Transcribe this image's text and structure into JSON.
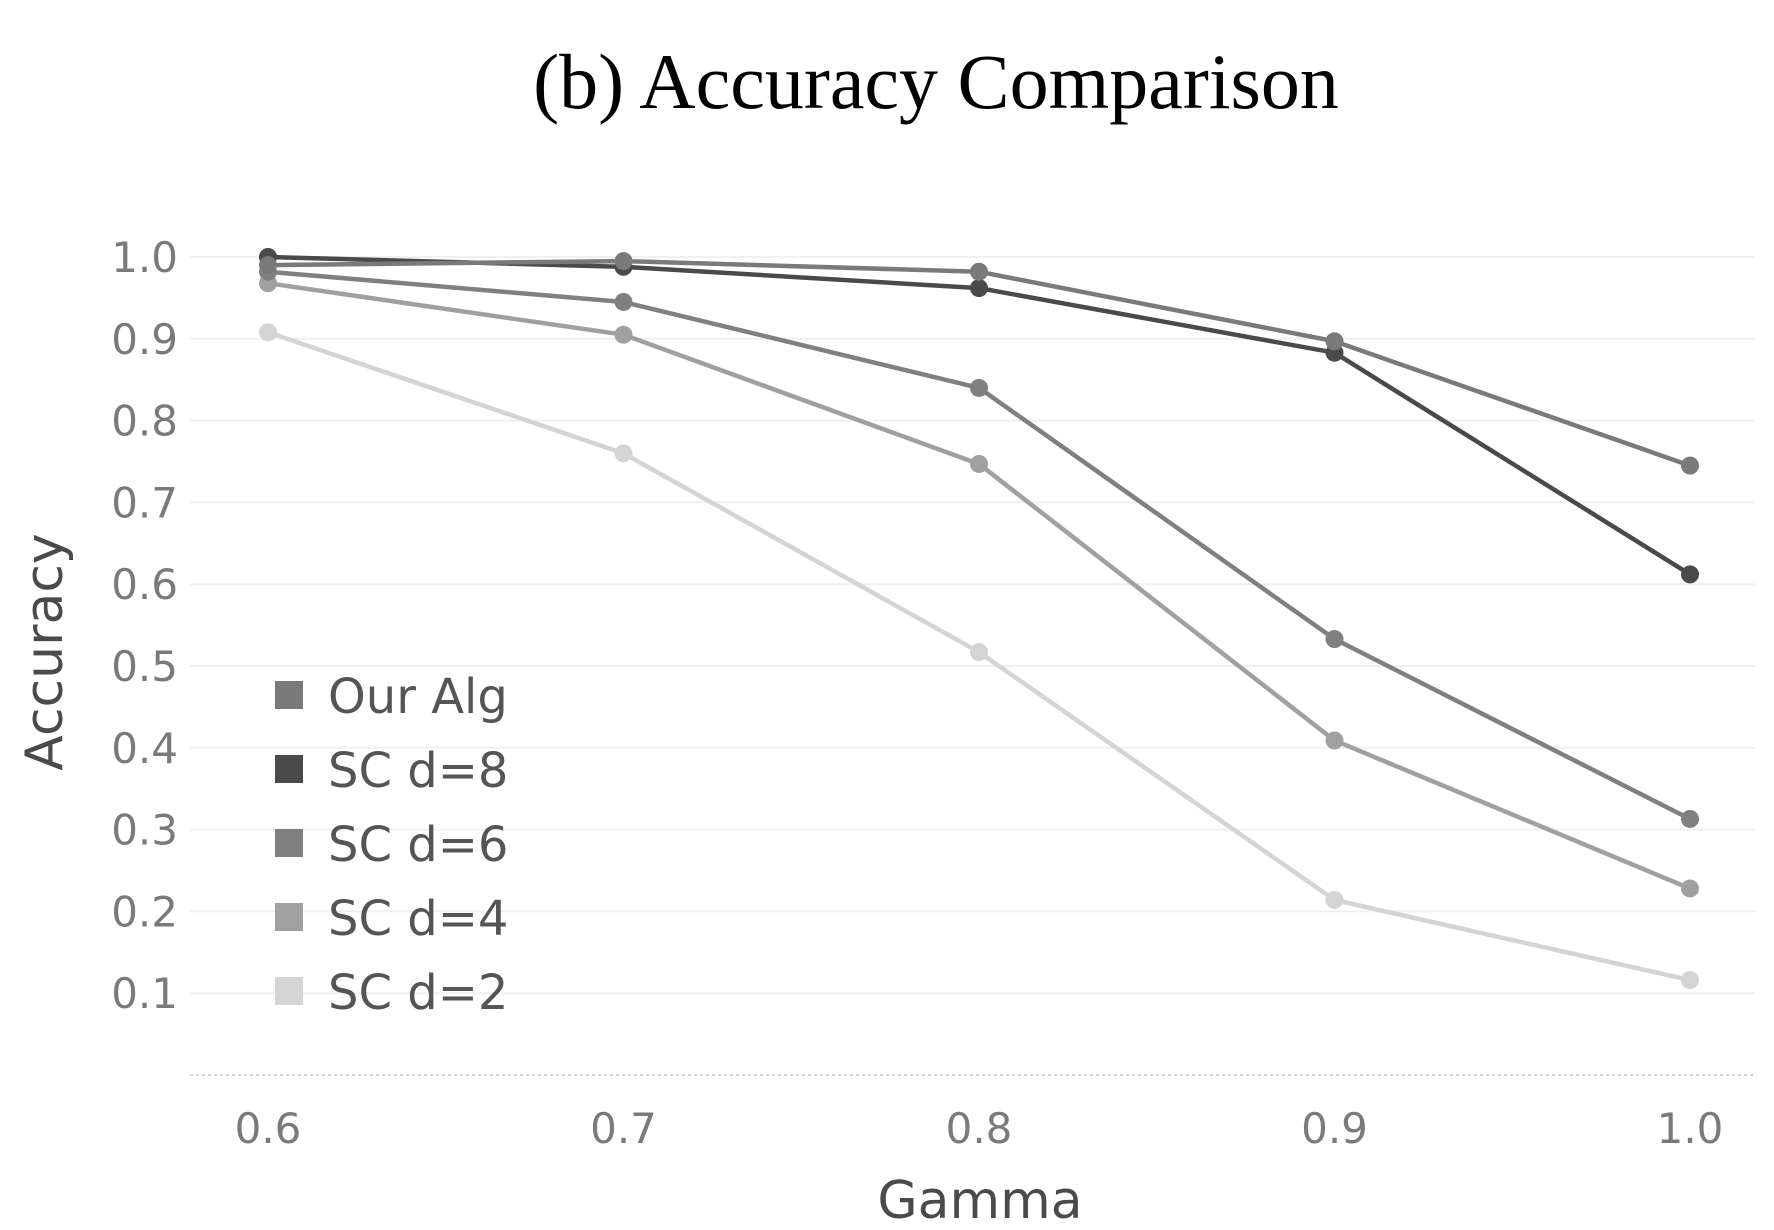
{
  "chart_data": {
    "type": "line",
    "title": "(b) Accuracy Comparison",
    "xlabel": "Gamma",
    "ylabel": "Accuracy",
    "x": [
      0.6,
      0.7,
      0.8,
      0.9,
      1.0
    ],
    "x_tick_labels": [
      "0.6",
      "0.7",
      "0.8",
      "0.9",
      "1.0"
    ],
    "y_tick_labels": [
      "0.1",
      "0.2",
      "0.3",
      "0.4",
      "0.5",
      "0.6",
      "0.7",
      "0.8",
      "0.9",
      "1.0"
    ],
    "y_ticks": [
      0.1,
      0.2,
      0.3,
      0.4,
      0.5,
      0.6,
      0.7,
      0.8,
      0.9,
      1.0
    ],
    "xlim": [
      0.58,
      1.02
    ],
    "ylim": [
      0.0,
      1.0
    ],
    "grid": true,
    "legend_position": "bottom-left",
    "series": [
      {
        "name": "Our Alg",
        "color": "#7a7a7a",
        "values": [
          0.99,
          0.995,
          0.982,
          0.897,
          0.745
        ]
      },
      {
        "name": "SC d=8",
        "color": "#4a4a4a",
        "values": [
          1.0,
          0.988,
          0.962,
          0.883,
          0.612
        ]
      },
      {
        "name": "SC d=6",
        "color": "#808080",
        "values": [
          0.982,
          0.945,
          0.84,
          0.533,
          0.313
        ]
      },
      {
        "name": "SC d=4",
        "color": "#a0a0a0",
        "values": [
          0.968,
          0.905,
          0.747,
          0.409,
          0.228
        ]
      },
      {
        "name": "SC d=2",
        "color": "#d4d4d4",
        "values": [
          0.908,
          0.76,
          0.517,
          0.214,
          0.116
        ]
      }
    ]
  }
}
